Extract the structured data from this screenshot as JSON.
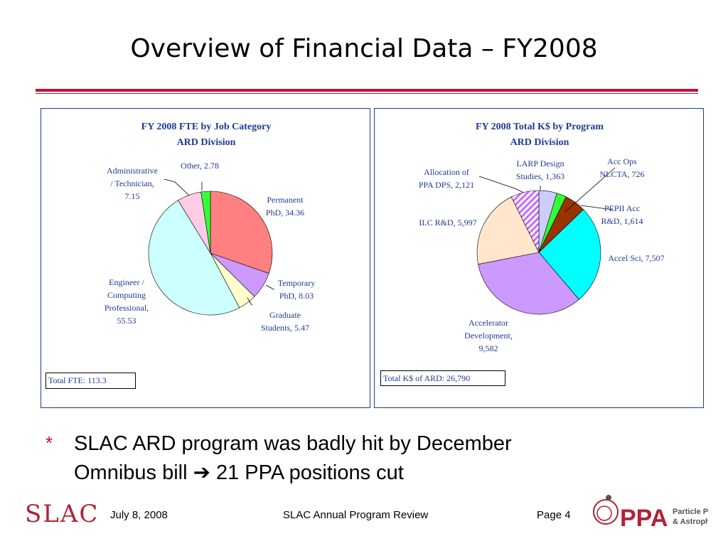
{
  "slide": {
    "title": "Overview of Financial Data – FY2008",
    "bullet_marker": "*",
    "bullet_line1": "SLAC ARD program was badly hit by December",
    "bullet_line2": "Omnibus bill",
    "bullet_arrow": "➔",
    "bullet_line2_rest": " 21 PPA positions cut"
  },
  "footer": {
    "logo_text": "SLAC",
    "date": "July 8, 2008",
    "center": "SLAC Annual Program Review",
    "page": "Page 4",
    "ppa_logo_text": "PPA",
    "ppa_tag1": "Particle Physics",
    "ppa_tag2": "& Astrophysics"
  },
  "chart_data": [
    {
      "type": "pie",
      "title": "FY 2008 FTE by Job Category",
      "subtitle": "ARD Division",
      "total_label": "Total FTE: 113.3",
      "slices": [
        {
          "label_lines": [
            "Permanent",
            "PhD, 34.36"
          ],
          "value": 34.36,
          "color": "#ff8080"
        },
        {
          "label_lines": [
            "Temporary",
            "PhD, 8.03"
          ],
          "value": 8.03,
          "color": "#cc99ff"
        },
        {
          "label_lines": [
            "Graduate",
            "Students, 5.47"
          ],
          "value": 5.47,
          "color": "#ffffcc"
        },
        {
          "label_lines": [
            "Engineer /",
            "Computing",
            "Professional,",
            "55.53"
          ],
          "value": 55.53,
          "color": "#ccffff"
        },
        {
          "label_lines": [
            "Administrative",
            "/ Technician,",
            "7.15"
          ],
          "value": 7.15,
          "color": "#ffcce6"
        },
        {
          "label_lines": [
            "Other, 2.78"
          ],
          "value": 2.78,
          "color": "#33ff33"
        }
      ]
    },
    {
      "type": "pie",
      "title": "FY 2008 Total K$ by Program",
      "subtitle": "ARD Division",
      "total_label": "Total K$ of ARD: 26,790",
      "slices": [
        {
          "label_lines": [
            "LARP Design",
            "Studies, 1,363"
          ],
          "value": 1363,
          "color": "#ccccff"
        },
        {
          "label_lines": [
            "Acc Ops",
            "NLCTA, 726"
          ],
          "value": 726,
          "color": "#33ff33"
        },
        {
          "label_lines": [
            "PEPII Acc",
            "R&D, 1,614"
          ],
          "value": 1614,
          "color": "#993300"
        },
        {
          "label_lines": [
            "Accel Sci, 7,507"
          ],
          "value": 7507,
          "color": "#00ffff"
        },
        {
          "label_lines": [
            "Accelerator",
            "Development,",
            "9,582"
          ],
          "value": 9582,
          "color": "#cc99ff"
        },
        {
          "label_lines": [
            "ILC R&D, 5,997"
          ],
          "value": 5997,
          "color": "#ffe6cc"
        },
        {
          "label_lines": [
            "Allocation of",
            "PPA DPS, 2,121"
          ],
          "value": 2121,
          "color": "#cc66ff",
          "pattern": "hatch"
        }
      ]
    }
  ]
}
